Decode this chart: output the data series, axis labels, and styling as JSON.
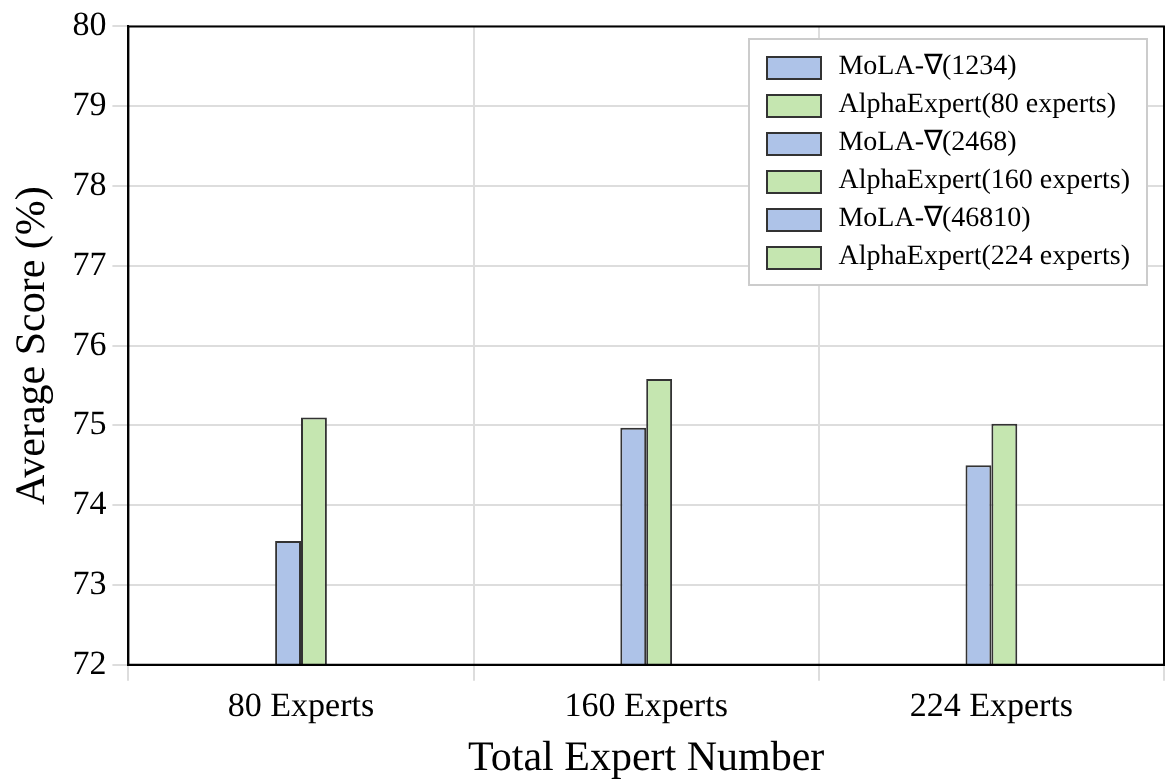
{
  "chart_data": {
    "type": "bar",
    "xlabel": "Total Expert Number",
    "ylabel": "Average Score (%)",
    "categories": [
      "80 Experts",
      "160 Experts",
      "224 Experts"
    ],
    "series": [
      {
        "name": "MoLA-∇(1234)",
        "color": "#aec3e8",
        "values": [
          73.55,
          null,
          null
        ]
      },
      {
        "name": "AlphaExpert(80 experts)",
        "color": "#c5e6b0",
        "values": [
          75.1,
          null,
          null
        ]
      },
      {
        "name": "MoLA-∇(2468)",
        "color": "#aec3e8",
        "values": [
          null,
          74.97,
          null
        ]
      },
      {
        "name": "AlphaExpert(160 experts)",
        "color": "#c5e6b0",
        "values": [
          null,
          75.58,
          null
        ]
      },
      {
        "name": "MoLA-∇(46810)",
        "color": "#aec3e8",
        "values": [
          null,
          null,
          74.5
        ]
      },
      {
        "name": "AlphaExpert(224 experts)",
        "color": "#c5e6b0",
        "values": [
          null,
          null,
          75.02
        ]
      }
    ],
    "ylim": [
      72,
      80
    ],
    "yticks": [
      72,
      73,
      74,
      75,
      76,
      77,
      78,
      79,
      80
    ],
    "grid": true,
    "legend": "top right"
  }
}
